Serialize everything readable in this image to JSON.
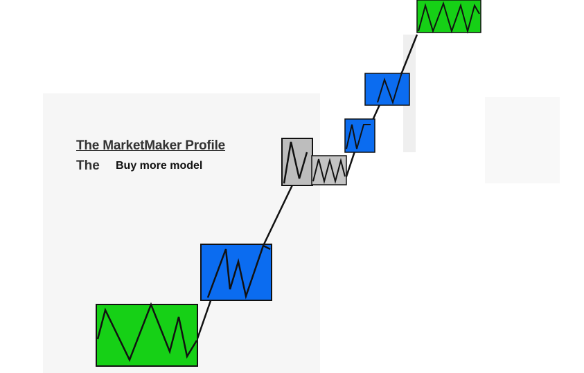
{
  "diagram": {
    "title": "The MarketMaker Profile",
    "subtitle_prefix": "The",
    "subtitle_model": "Buy more model"
  },
  "colors": {
    "green": "#16d016",
    "blue": "#0b6cf0",
    "gray": "#bdbdbd",
    "stroke": "#111111"
  }
}
